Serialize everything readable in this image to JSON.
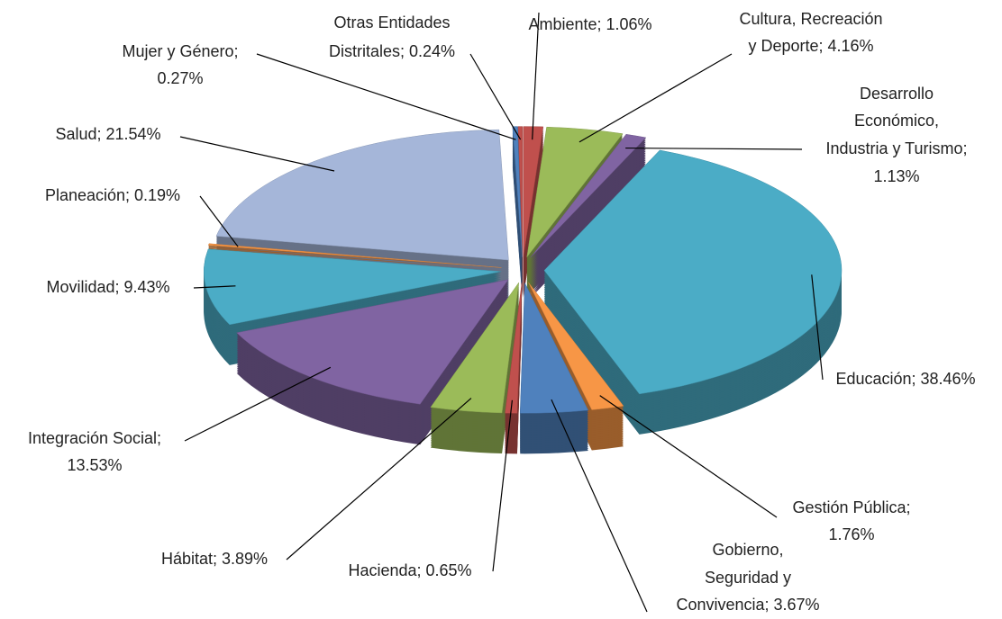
{
  "chart_data": {
    "type": "pie3d",
    "labels": [
      [
        "Ambiente; 1.06%"
      ],
      [
        "Cultura, Recreación",
        "y Deporte; 4.16%"
      ],
      [
        "Desarrollo",
        "Económico,",
        "Industria y Turismo;",
        "1.13%"
      ],
      [
        "Educación; 38.46%"
      ],
      [
        "Gestión Pública;",
        "1.76%"
      ],
      [
        "Gobierno,",
        "Seguridad y",
        "Convivencia; 3.67%"
      ],
      [
        "Hacienda; 0.65%"
      ],
      [
        "Hábitat; 3.89%"
      ],
      [
        "Integración Social;",
        "13.53%"
      ],
      [
        "Movilidad; 9.43%"
      ],
      [
        "Planeación; 0.19%"
      ],
      [
        "Salud; 21.54%"
      ],
      [
        "Mujer y Género;",
        "0.27%"
      ],
      [
        "Otras Entidades",
        "Distritales; 0.24%"
      ]
    ],
    "values": [
      1.06,
      4.16,
      1.13,
      38.46,
      1.76,
      3.67,
      0.65,
      3.89,
      13.53,
      9.43,
      0.19,
      21.54,
      0.27,
      0.24
    ],
    "colors": [
      "#c0504d",
      "#9bbb59",
      "#8064a2",
      "#4bacc6",
      "#f79646",
      "#4f81bd",
      "#c0504d",
      "#9bbb59",
      "#8064a2",
      "#4bacc6",
      "#f79646",
      "#a5b6d9",
      "#4f81bd",
      "#c0504d"
    ]
  }
}
